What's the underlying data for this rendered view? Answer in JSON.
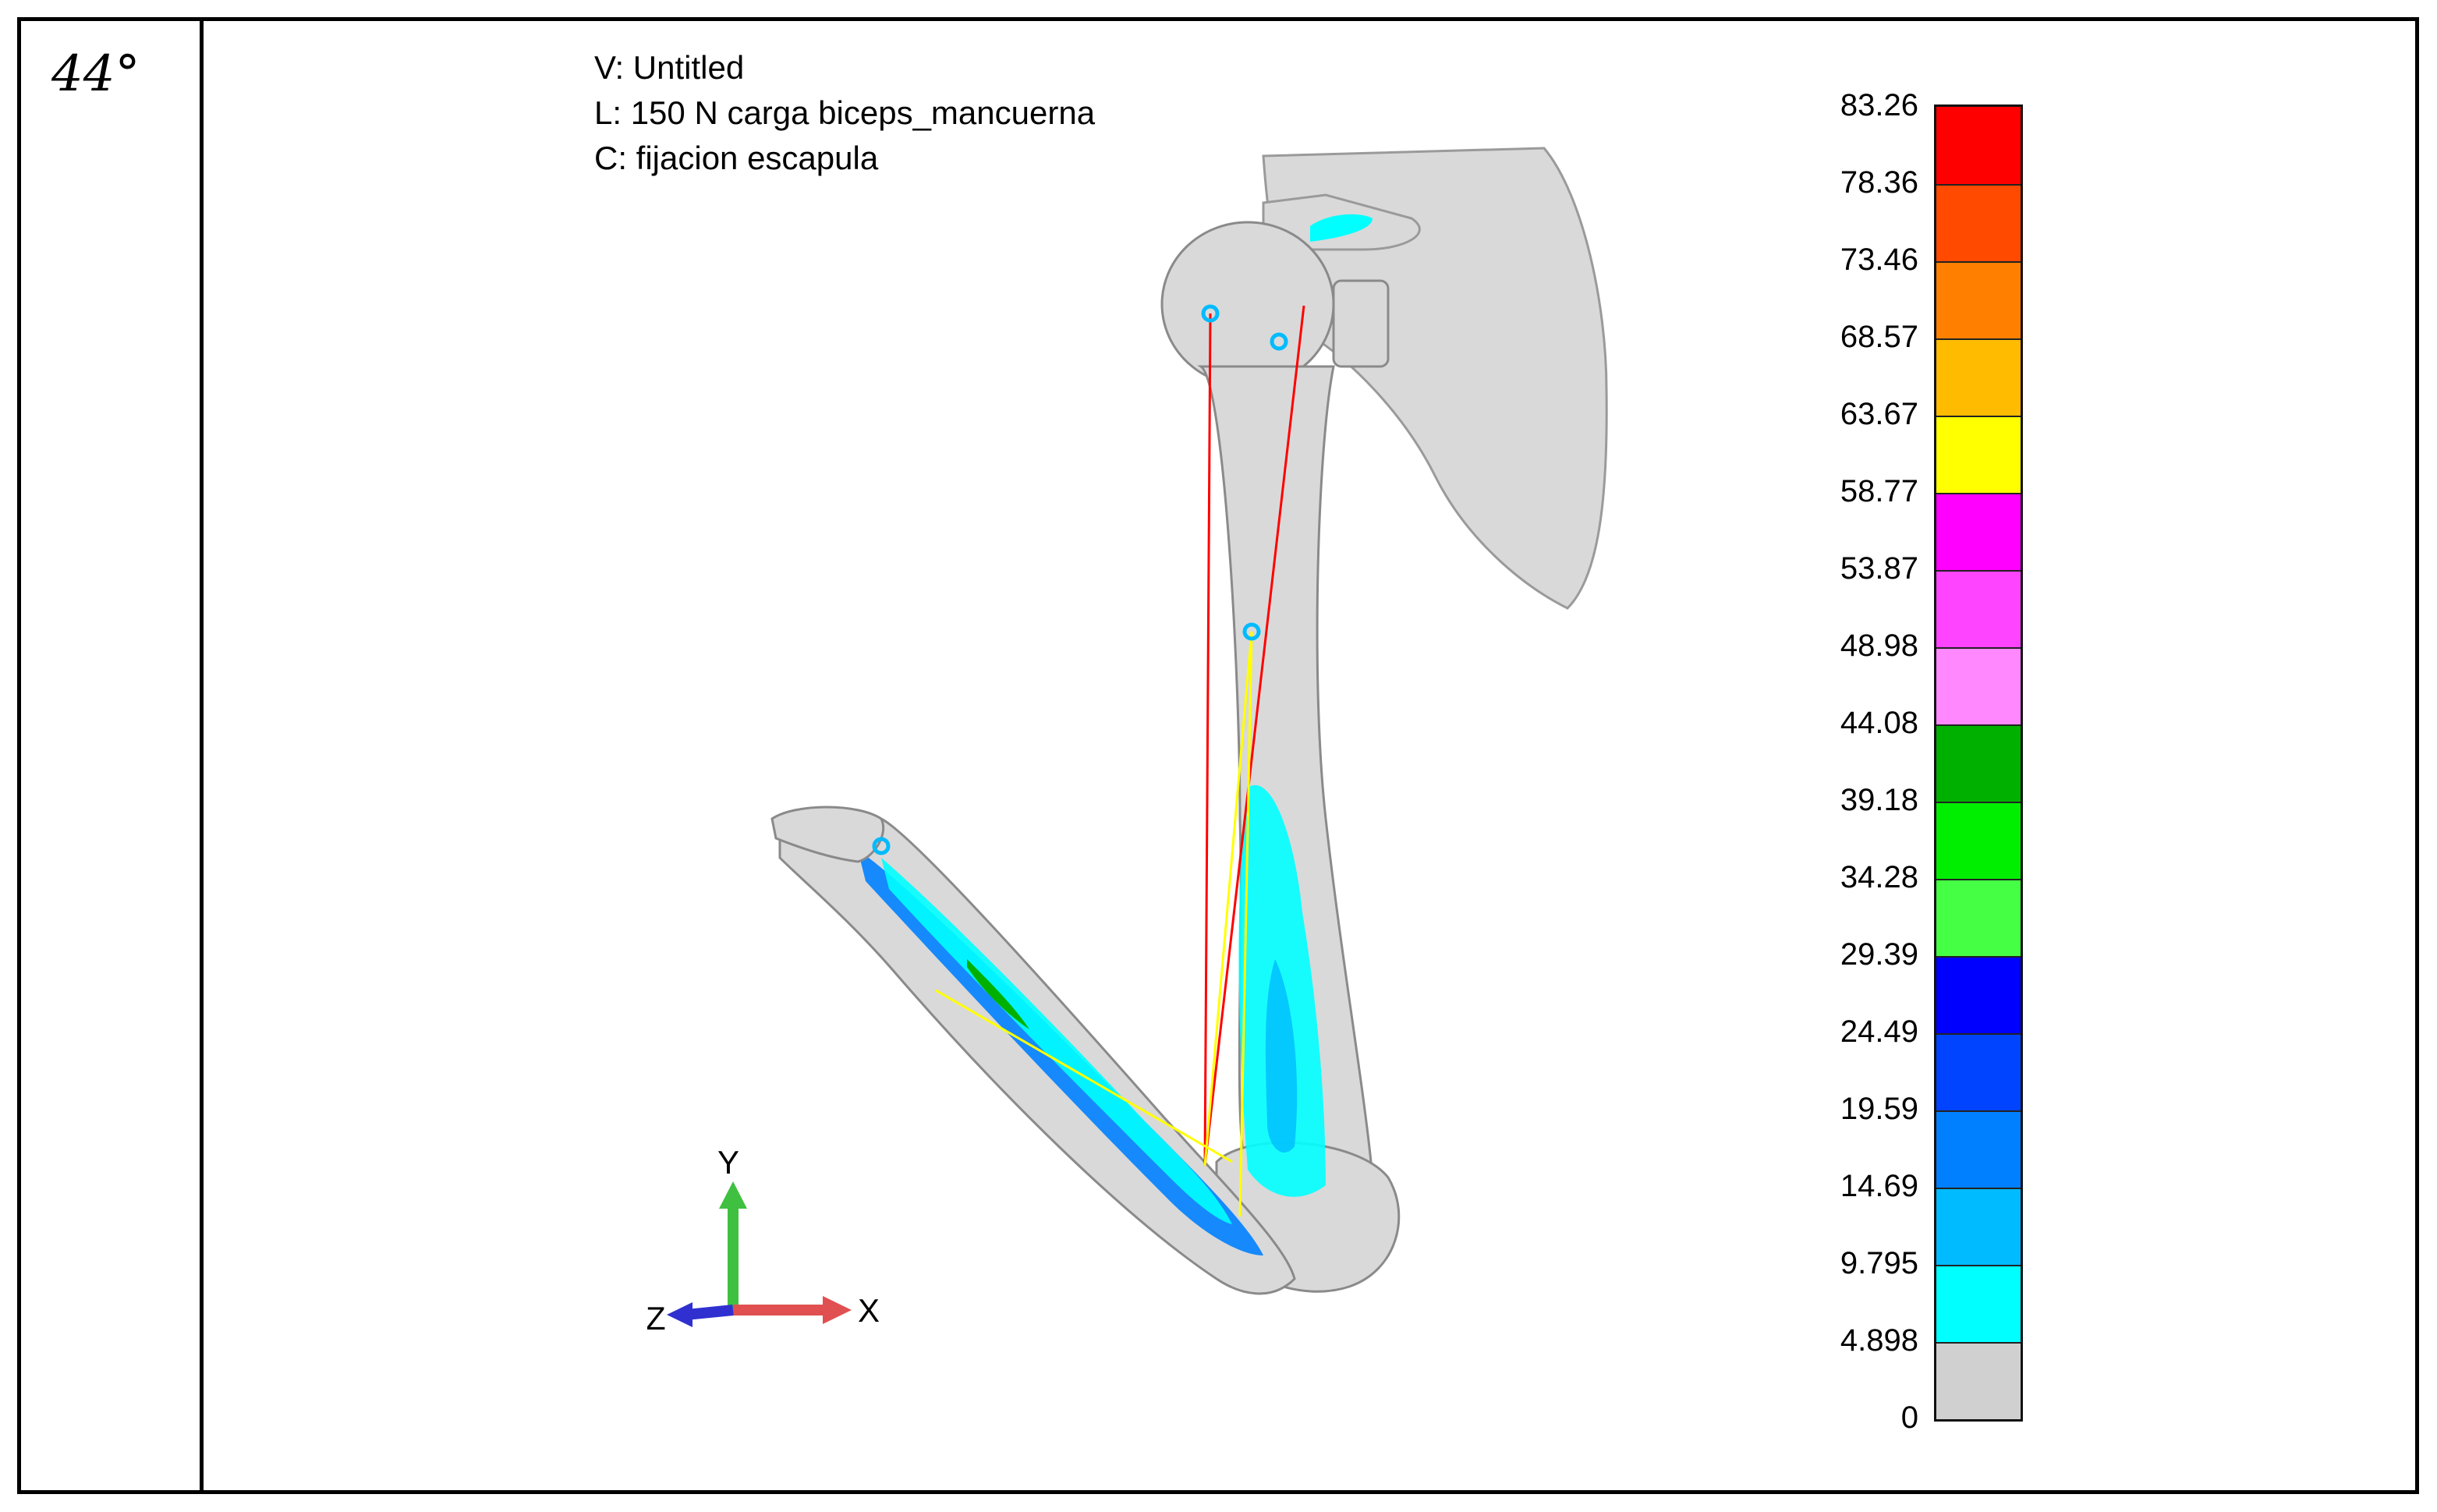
{
  "panel": {
    "angle": "44°"
  },
  "view_info": {
    "view": "V: Untitled",
    "load": "L: 150 N carga biceps_mancuerna",
    "constraint": "C: fijacion escapula"
  },
  "legend": {
    "ticks": [
      "83.26",
      "78.36",
      "73.46",
      "68.57",
      "63.67",
      "58.77",
      "53.87",
      "48.98",
      "44.08",
      "39.18",
      "34.28",
      "29.39",
      "24.49",
      "19.59",
      "14.69",
      "9.795",
      "4.898",
      "0"
    ],
    "colors": [
      "#ff0000",
      "#ff4a00",
      "#ff8000",
      "#ffbb00",
      "#ffff00",
      "#ff00ff",
      "#ff44ff",
      "#ff88ff",
      "#00b000",
      "#00ee00",
      "#44ff44",
      "#0000ff",
      "#0044ff",
      "#0080ff",
      "#00bbff",
      "#00ffff",
      "#d0d0d0"
    ]
  },
  "axes_triad": {
    "x_label": "X",
    "y_label": "Y",
    "z_label": "Z",
    "x_color": "#e05050",
    "y_color": "#40c040",
    "z_color": "#3030d0"
  },
  "model_colors": {
    "bone": "#d9d9d9",
    "stress_low": "#00ffff",
    "stress_mid": "#0080ff",
    "muscle_biceps": "#ff0000",
    "muscle_other": "#ffff00"
  }
}
